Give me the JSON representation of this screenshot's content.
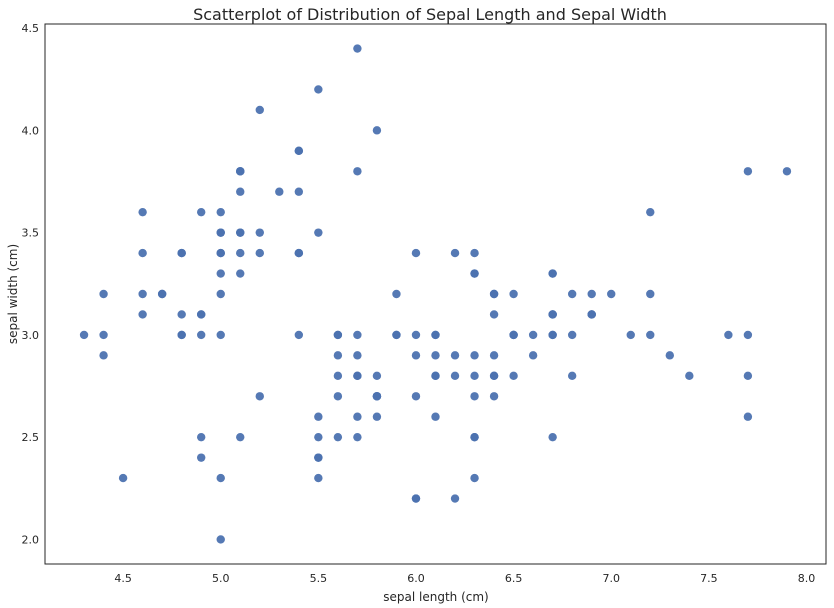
{
  "chart_data": {
    "type": "scatter",
    "title": "Scatterplot of Distribution of Sepal Length and Sepal Width",
    "xlabel": "sepal length (cm)",
    "ylabel": "sepal width (cm)",
    "xlim": [
      4.1,
      8.1
    ],
    "ylim": [
      1.88,
      4.52
    ],
    "xticks": [
      4.5,
      5.0,
      5.5,
      6.0,
      6.5,
      7.0,
      7.5,
      8.0
    ],
    "xtick_labels": [
      "4.5",
      "5.0",
      "5.5",
      "6.0",
      "6.5",
      "7.0",
      "7.5",
      "8.0"
    ],
    "yticks": [
      2.0,
      2.5,
      3.0,
      3.5,
      4.0,
      4.5
    ],
    "ytick_labels": [
      "2.0",
      "2.5",
      "3.0",
      "3.5",
      "4.0",
      "4.5"
    ],
    "grid": false,
    "color": "#4c72b0",
    "x": [
      5.1,
      4.9,
      4.7,
      4.6,
      5.0,
      5.4,
      4.6,
      5.0,
      4.4,
      4.9,
      5.4,
      4.8,
      4.8,
      4.3,
      5.8,
      5.7,
      5.4,
      5.1,
      5.7,
      5.1,
      5.4,
      5.1,
      4.6,
      5.1,
      4.8,
      5.0,
      5.0,
      5.2,
      5.2,
      4.7,
      4.8,
      5.4,
      5.2,
      5.5,
      4.9,
      5.0,
      5.5,
      4.9,
      4.4,
      5.1,
      5.0,
      4.5,
      4.4,
      5.0,
      5.1,
      4.8,
      5.1,
      4.6,
      5.3,
      5.0,
      7.0,
      6.4,
      6.9,
      5.5,
      6.5,
      5.7,
      6.3,
      4.9,
      6.6,
      5.2,
      5.0,
      5.9,
      6.0,
      6.1,
      5.6,
      6.7,
      5.6,
      5.8,
      6.2,
      5.6,
      5.9,
      6.1,
      6.3,
      6.1,
      6.4,
      6.6,
      6.8,
      6.7,
      6.0,
      5.7,
      5.5,
      5.5,
      5.8,
      6.0,
      5.4,
      6.0,
      6.7,
      6.3,
      5.6,
      5.5,
      5.5,
      6.1,
      5.8,
      5.0,
      5.6,
      5.7,
      5.7,
      6.2,
      5.1,
      5.7,
      6.3,
      5.8,
      7.1,
      6.3,
      6.5,
      7.6,
      4.9,
      7.3,
      6.7,
      7.2,
      6.5,
      6.4,
      6.8,
      5.7,
      5.8,
      6.4,
      6.5,
      7.7,
      7.7,
      6.0,
      6.9,
      5.6,
      7.7,
      6.3,
      6.7,
      7.2,
      6.2,
      6.1,
      6.4,
      7.2,
      7.4,
      7.9,
      6.4,
      6.3,
      6.1,
      7.7,
      6.3,
      6.4,
      6.0,
      6.9,
      6.7,
      6.9,
      5.8,
      6.8,
      6.7,
      6.7,
      6.3,
      6.5,
      6.2,
      5.9
    ],
    "y": [
      3.5,
      3.0,
      3.2,
      3.1,
      3.6,
      3.9,
      3.4,
      3.4,
      2.9,
      3.1,
      3.7,
      3.4,
      3.0,
      3.0,
      4.0,
      4.4,
      3.9,
      3.5,
      3.8,
      3.8,
      3.4,
      3.7,
      3.6,
      3.3,
      3.4,
      3.0,
      3.4,
      3.5,
      3.4,
      3.2,
      3.1,
      3.4,
      4.1,
      4.2,
      3.1,
      3.2,
      3.5,
      3.6,
      3.0,
      3.4,
      3.5,
      2.3,
      3.2,
      3.5,
      3.8,
      3.0,
      3.8,
      3.2,
      3.7,
      3.3,
      3.2,
      3.2,
      3.1,
      2.3,
      2.8,
      2.8,
      3.3,
      2.4,
      2.9,
      2.7,
      2.0,
      3.0,
      2.2,
      2.9,
      2.9,
      3.1,
      3.0,
      2.7,
      2.2,
      2.5,
      3.2,
      2.8,
      2.5,
      2.8,
      2.9,
      3.0,
      2.8,
      3.0,
      2.9,
      2.6,
      2.4,
      2.4,
      2.7,
      2.7,
      3.0,
      3.4,
      3.1,
      2.3,
      3.0,
      2.5,
      2.6,
      3.0,
      2.6,
      2.3,
      2.7,
      3.0,
      2.9,
      2.9,
      2.5,
      2.8,
      3.3,
      2.7,
      3.0,
      2.9,
      3.0,
      3.0,
      2.5,
      2.9,
      2.5,
      3.6,
      3.2,
      2.7,
      3.0,
      2.5,
      2.8,
      3.2,
      3.0,
      3.8,
      2.6,
      2.2,
      3.2,
      2.8,
      2.8,
      2.7,
      3.3,
      3.2,
      2.8,
      3.0,
      2.8,
      3.0,
      2.8,
      3.8,
      2.8,
      2.8,
      2.6,
      3.0,
      3.4,
      3.1,
      3.0,
      3.1,
      3.1,
      3.1,
      2.7,
      3.2,
      3.3,
      3.0,
      2.5,
      3.0,
      3.4,
      3.0
    ]
  }
}
